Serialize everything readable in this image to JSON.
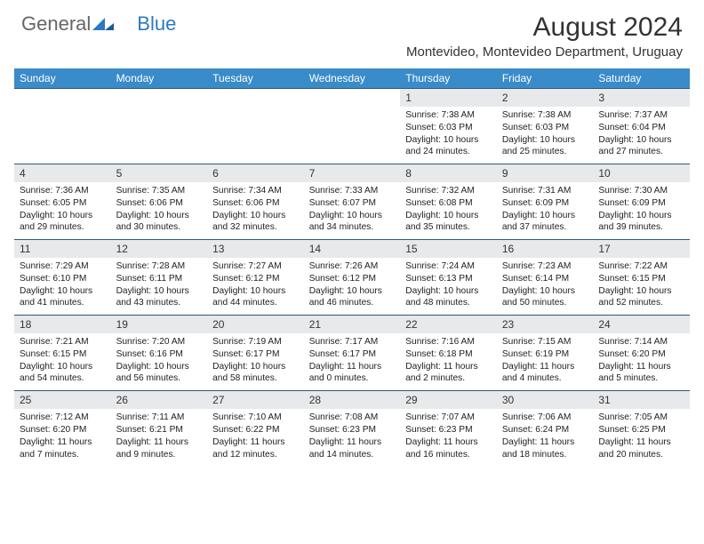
{
  "brand": {
    "part1": "General",
    "part2": "Blue"
  },
  "title": "August 2024",
  "location": "Montevideo, Montevideo Department, Uruguay",
  "colors": {
    "header_bg": "#3a8bc9",
    "daynum_bg": "#e7e9eb",
    "border": "#2c5a7a",
    "brand_blue": "#2c7ac0"
  },
  "weekdays": [
    "Sunday",
    "Monday",
    "Tuesday",
    "Wednesday",
    "Thursday",
    "Friday",
    "Saturday"
  ],
  "weeks": [
    {
      "nums": [
        "",
        "",
        "",
        "",
        "1",
        "2",
        "3"
      ],
      "cells": [
        null,
        null,
        null,
        null,
        {
          "sr": "7:38 AM",
          "ss": "6:03 PM",
          "dl": "10 hours and 24 minutes."
        },
        {
          "sr": "7:38 AM",
          "ss": "6:03 PM",
          "dl": "10 hours and 25 minutes."
        },
        {
          "sr": "7:37 AM",
          "ss": "6:04 PM",
          "dl": "10 hours and 27 minutes."
        }
      ]
    },
    {
      "nums": [
        "4",
        "5",
        "6",
        "7",
        "8",
        "9",
        "10"
      ],
      "cells": [
        {
          "sr": "7:36 AM",
          "ss": "6:05 PM",
          "dl": "10 hours and 29 minutes."
        },
        {
          "sr": "7:35 AM",
          "ss": "6:06 PM",
          "dl": "10 hours and 30 minutes."
        },
        {
          "sr": "7:34 AM",
          "ss": "6:06 PM",
          "dl": "10 hours and 32 minutes."
        },
        {
          "sr": "7:33 AM",
          "ss": "6:07 PM",
          "dl": "10 hours and 34 minutes."
        },
        {
          "sr": "7:32 AM",
          "ss": "6:08 PM",
          "dl": "10 hours and 35 minutes."
        },
        {
          "sr": "7:31 AM",
          "ss": "6:09 PM",
          "dl": "10 hours and 37 minutes."
        },
        {
          "sr": "7:30 AM",
          "ss": "6:09 PM",
          "dl": "10 hours and 39 minutes."
        }
      ]
    },
    {
      "nums": [
        "11",
        "12",
        "13",
        "14",
        "15",
        "16",
        "17"
      ],
      "cells": [
        {
          "sr": "7:29 AM",
          "ss": "6:10 PM",
          "dl": "10 hours and 41 minutes."
        },
        {
          "sr": "7:28 AM",
          "ss": "6:11 PM",
          "dl": "10 hours and 43 minutes."
        },
        {
          "sr": "7:27 AM",
          "ss": "6:12 PM",
          "dl": "10 hours and 44 minutes."
        },
        {
          "sr": "7:26 AM",
          "ss": "6:12 PM",
          "dl": "10 hours and 46 minutes."
        },
        {
          "sr": "7:24 AM",
          "ss": "6:13 PM",
          "dl": "10 hours and 48 minutes."
        },
        {
          "sr": "7:23 AM",
          "ss": "6:14 PM",
          "dl": "10 hours and 50 minutes."
        },
        {
          "sr": "7:22 AM",
          "ss": "6:15 PM",
          "dl": "10 hours and 52 minutes."
        }
      ]
    },
    {
      "nums": [
        "18",
        "19",
        "20",
        "21",
        "22",
        "23",
        "24"
      ],
      "cells": [
        {
          "sr": "7:21 AM",
          "ss": "6:15 PM",
          "dl": "10 hours and 54 minutes."
        },
        {
          "sr": "7:20 AM",
          "ss": "6:16 PM",
          "dl": "10 hours and 56 minutes."
        },
        {
          "sr": "7:19 AM",
          "ss": "6:17 PM",
          "dl": "10 hours and 58 minutes."
        },
        {
          "sr": "7:17 AM",
          "ss": "6:17 PM",
          "dl": "11 hours and 0 minutes."
        },
        {
          "sr": "7:16 AM",
          "ss": "6:18 PM",
          "dl": "11 hours and 2 minutes."
        },
        {
          "sr": "7:15 AM",
          "ss": "6:19 PM",
          "dl": "11 hours and 4 minutes."
        },
        {
          "sr": "7:14 AM",
          "ss": "6:20 PM",
          "dl": "11 hours and 5 minutes."
        }
      ]
    },
    {
      "nums": [
        "25",
        "26",
        "27",
        "28",
        "29",
        "30",
        "31"
      ],
      "cells": [
        {
          "sr": "7:12 AM",
          "ss": "6:20 PM",
          "dl": "11 hours and 7 minutes."
        },
        {
          "sr": "7:11 AM",
          "ss": "6:21 PM",
          "dl": "11 hours and 9 minutes."
        },
        {
          "sr": "7:10 AM",
          "ss": "6:22 PM",
          "dl": "11 hours and 12 minutes."
        },
        {
          "sr": "7:08 AM",
          "ss": "6:23 PM",
          "dl": "11 hours and 14 minutes."
        },
        {
          "sr": "7:07 AM",
          "ss": "6:23 PM",
          "dl": "11 hours and 16 minutes."
        },
        {
          "sr": "7:06 AM",
          "ss": "6:24 PM",
          "dl": "11 hours and 18 minutes."
        },
        {
          "sr": "7:05 AM",
          "ss": "6:25 PM",
          "dl": "11 hours and 20 minutes."
        }
      ]
    }
  ]
}
